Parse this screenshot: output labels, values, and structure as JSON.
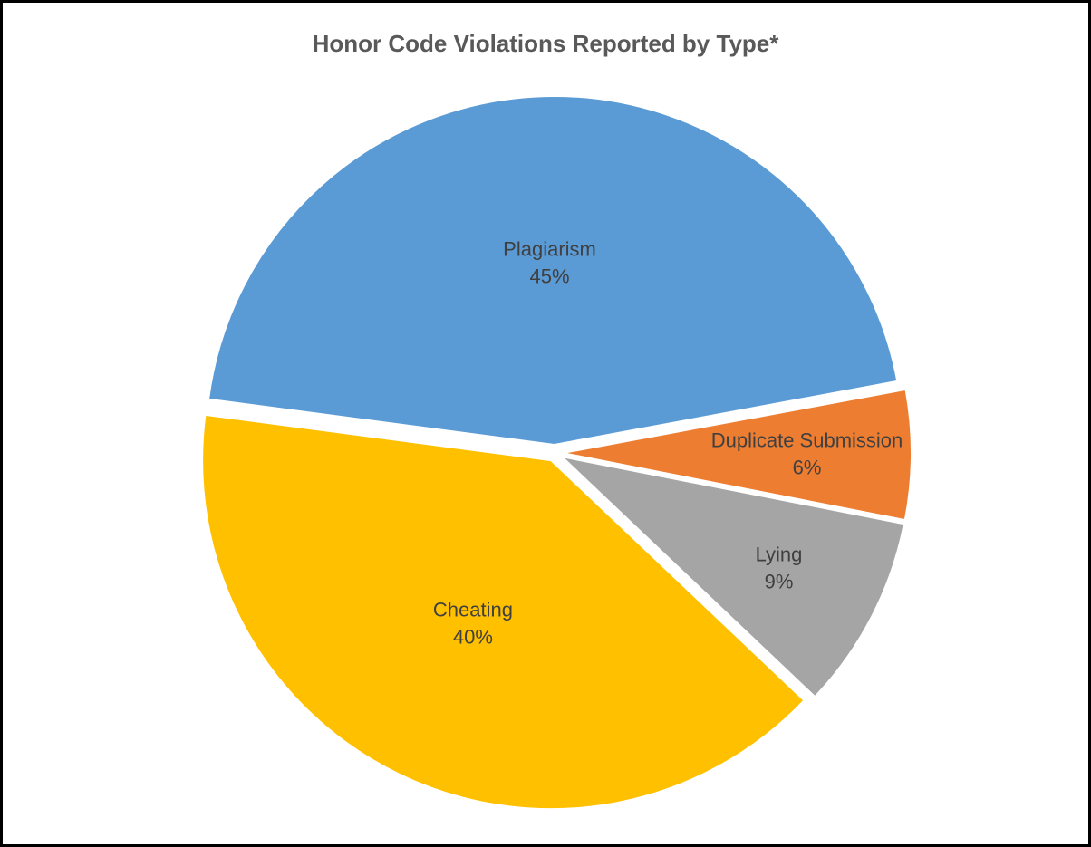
{
  "chart_data": {
    "type": "pie",
    "title": "Honor Code Violations Reported by Type*",
    "categories": [
      "Plagiarism",
      "Duplicate Submission",
      "Lying",
      "Cheating"
    ],
    "values": [
      45,
      6,
      9,
      40
    ],
    "value_labels": [
      "45%",
      "6%",
      "9%",
      "40%"
    ],
    "colors": [
      "#5b9bd5",
      "#ed7d31",
      "#a5a5a5",
      "#ffc000"
    ]
  }
}
